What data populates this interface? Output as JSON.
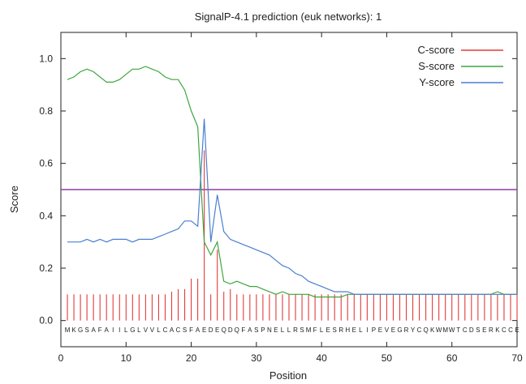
{
  "chart_data": {
    "type": "line",
    "title": "SignalP-4.1 prediction (euk networks): 1",
    "xlabel": "Position",
    "ylabel": "Score",
    "xlim": [
      0,
      70
    ],
    "ylim": [
      -0.1,
      1.1
    ],
    "x_ticks": [
      0,
      10,
      20,
      30,
      40,
      50,
      60,
      70
    ],
    "y_ticks": [
      0.0,
      0.2,
      0.4,
      0.6,
      0.8,
      1.0
    ],
    "y_tick_labels": [
      "0.0",
      "0.2",
      "0.4",
      "0.6",
      "0.8",
      "1.0"
    ],
    "legend_position": "top-right",
    "threshold": 0.5,
    "threshold_color": "#8e3fa0",
    "sequence": "MKGSAFAIILGLVVLCACSFAEDEQDQFASPNELLRSMFLESRHELIPEVEGRYCQKWMWTCDSERKCCE",
    "series": [
      {
        "name": "C-score",
        "style": "impulse",
        "color": "#e33b3b",
        "x": [
          1,
          2,
          3,
          4,
          5,
          6,
          7,
          8,
          9,
          10,
          11,
          12,
          13,
          14,
          15,
          16,
          17,
          18,
          19,
          20,
          21,
          22,
          23,
          24,
          25,
          26,
          27,
          28,
          29,
          30,
          31,
          32,
          33,
          34,
          35,
          36,
          37,
          38,
          39,
          40,
          41,
          42,
          43,
          44,
          45,
          46,
          47,
          48,
          49,
          50,
          51,
          52,
          53,
          54,
          55,
          56,
          57,
          58,
          59,
          60,
          61,
          62,
          63,
          64,
          65,
          66,
          67,
          68,
          69,
          70
        ],
        "values": [
          0.1,
          0.1,
          0.1,
          0.1,
          0.1,
          0.1,
          0.1,
          0.1,
          0.1,
          0.1,
          0.1,
          0.1,
          0.1,
          0.1,
          0.1,
          0.1,
          0.11,
          0.12,
          0.12,
          0.16,
          0.16,
          0.65,
          0.1,
          0.27,
          0.11,
          0.12,
          0.1,
          0.1,
          0.1,
          0.1,
          0.1,
          0.1,
          0.1,
          0.1,
          0.1,
          0.1,
          0.1,
          0.1,
          0.1,
          0.1,
          0.1,
          0.1,
          0.1,
          0.1,
          0.1,
          0.1,
          0.1,
          0.1,
          0.1,
          0.1,
          0.1,
          0.1,
          0.1,
          0.1,
          0.1,
          0.1,
          0.1,
          0.1,
          0.1,
          0.1,
          0.1,
          0.1,
          0.1,
          0.1,
          0.1,
          0.1,
          0.1,
          0.1,
          0.1,
          0.1
        ]
      },
      {
        "name": "S-score",
        "style": "line",
        "color": "#3fa63f",
        "x": [
          1,
          2,
          3,
          4,
          5,
          6,
          7,
          8,
          9,
          10,
          11,
          12,
          13,
          14,
          15,
          16,
          17,
          18,
          19,
          20,
          21,
          22,
          23,
          24,
          25,
          26,
          27,
          28,
          29,
          30,
          31,
          32,
          33,
          34,
          35,
          36,
          37,
          38,
          39,
          40,
          41,
          42,
          43,
          44,
          45,
          46,
          47,
          48,
          49,
          50,
          51,
          52,
          53,
          54,
          55,
          56,
          57,
          58,
          59,
          60,
          61,
          62,
          63,
          64,
          65,
          66,
          67,
          68,
          69,
          70
        ],
        "values": [
          0.92,
          0.93,
          0.95,
          0.96,
          0.95,
          0.93,
          0.91,
          0.91,
          0.92,
          0.94,
          0.96,
          0.96,
          0.97,
          0.96,
          0.95,
          0.93,
          0.92,
          0.92,
          0.88,
          0.8,
          0.74,
          0.3,
          0.25,
          0.3,
          0.15,
          0.14,
          0.15,
          0.14,
          0.13,
          0.13,
          0.12,
          0.11,
          0.1,
          0.11,
          0.1,
          0.1,
          0.1,
          0.1,
          0.09,
          0.09,
          0.09,
          0.09,
          0.09,
          0.1,
          0.1,
          0.1,
          0.1,
          0.1,
          0.1,
          0.1,
          0.1,
          0.1,
          0.1,
          0.1,
          0.1,
          0.1,
          0.1,
          0.1,
          0.1,
          0.1,
          0.1,
          0.1,
          0.1,
          0.1,
          0.1,
          0.1,
          0.11,
          0.1,
          0.1,
          0.1
        ]
      },
      {
        "name": "Y-score",
        "style": "line",
        "color": "#4a7fd0",
        "x": [
          1,
          2,
          3,
          4,
          5,
          6,
          7,
          8,
          9,
          10,
          11,
          12,
          13,
          14,
          15,
          16,
          17,
          18,
          19,
          20,
          21,
          22,
          23,
          24,
          25,
          26,
          27,
          28,
          29,
          30,
          31,
          32,
          33,
          34,
          35,
          36,
          37,
          38,
          39,
          40,
          41,
          42,
          43,
          44,
          45,
          46,
          47,
          48,
          49,
          50,
          51,
          52,
          53,
          54,
          55,
          56,
          57,
          58,
          59,
          60,
          61,
          62,
          63,
          64,
          65,
          66,
          67,
          68,
          69,
          70
        ],
        "values": [
          0.3,
          0.3,
          0.3,
          0.31,
          0.3,
          0.31,
          0.3,
          0.31,
          0.31,
          0.31,
          0.3,
          0.31,
          0.31,
          0.31,
          0.32,
          0.33,
          0.34,
          0.35,
          0.38,
          0.38,
          0.36,
          0.77,
          0.3,
          0.48,
          0.34,
          0.31,
          0.3,
          0.29,
          0.28,
          0.27,
          0.26,
          0.25,
          0.23,
          0.21,
          0.2,
          0.18,
          0.17,
          0.15,
          0.14,
          0.13,
          0.12,
          0.11,
          0.11,
          0.11,
          0.1,
          0.1,
          0.1,
          0.1,
          0.1,
          0.1,
          0.1,
          0.1,
          0.1,
          0.1,
          0.1,
          0.1,
          0.1,
          0.1,
          0.1,
          0.1,
          0.1,
          0.1,
          0.1,
          0.1,
          0.1,
          0.1,
          0.1,
          0.1,
          0.1,
          0.1
        ]
      }
    ]
  }
}
